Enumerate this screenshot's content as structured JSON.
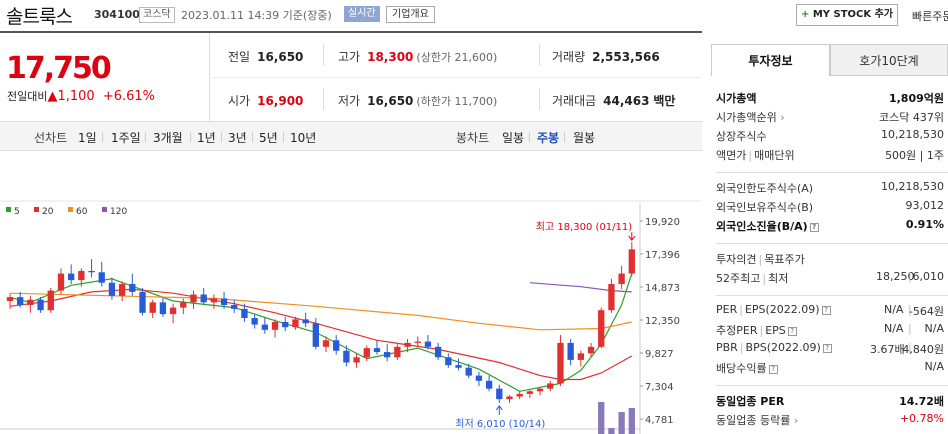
{
  "header": {
    "stock_name": "솔트룩스",
    "stock_code": "304100",
    "market": "코스닥",
    "timestamp": "2023.01.11 14:39 기준(장중)",
    "live": "실시간",
    "company_overview": "기업개요",
    "mystock_label": "MY STOCK 추가",
    "quick_order": "빠른주문"
  },
  "price": {
    "current": "17,750",
    "change_label": "전일대비",
    "change": "1,100",
    "change_pct": "+6.61%"
  },
  "quote": {
    "prev_close_label": "전일",
    "prev_close": "16,650",
    "high_label": "고가",
    "high": "18,300",
    "upper_limit": "(상한가 21,600)",
    "volume_label": "거래량",
    "volume": "2,553,566",
    "open_label": "시가",
    "open": "16,900",
    "low_label": "저가",
    "low": "16,650",
    "lower_limit": "(하한가 11,700)",
    "amount_label": "거래대금",
    "amount": "44,463",
    "amount_unit": "백만"
  },
  "periods": {
    "line_label": "선차트",
    "items": [
      "1일",
      "1주일",
      "3개월",
      "1년",
      "3년",
      "5년",
      "10년"
    ],
    "candle_label": "봉차트",
    "candles": [
      "일봉",
      "주봉",
      "월봉"
    ],
    "active_candle": "주봉"
  },
  "legend": {
    "ma": [
      {
        "name": "5",
        "color": "#2ca02c"
      },
      {
        "name": "20",
        "color": "#e03030"
      },
      {
        "name": "60",
        "color": "#f0901e"
      },
      {
        "name": "120",
        "color": "#8855bb"
      }
    ]
  },
  "chart_data": {
    "type": "candlestick",
    "y_ticks": [
      "19,920",
      "17,396",
      "14,873",
      "12,350",
      "9,827",
      "7,304",
      "4,781"
    ],
    "ylim": [
      4781,
      19920
    ],
    "max_note": "최고 18,300 (01/11)",
    "min_note": "최저 6,010 (10/14)",
    "volume_label": "거래량",
    "colors": {
      "up": "#e03030",
      "down": "#2a5bd7"
    },
    "candles": [
      [
        13800,
        14400,
        13200,
        14100
      ],
      [
        14100,
        14500,
        13300,
        13500
      ],
      [
        13500,
        14200,
        12900,
        13900
      ],
      [
        13900,
        14100,
        12900,
        13100
      ],
      [
        13100,
        14800,
        12900,
        14600
      ],
      [
        14600,
        16300,
        14300,
        15900
      ],
      [
        15900,
        16600,
        15100,
        15400
      ],
      [
        15400,
        16300,
        14900,
        16100
      ],
      [
        16100,
        17000,
        15600,
        16000
      ],
      [
        16000,
        16800,
        14900,
        15200
      ],
      [
        15200,
        15600,
        13900,
        14200
      ],
      [
        14200,
        15300,
        13800,
        15100
      ],
      [
        15100,
        15900,
        14200,
        14500
      ],
      [
        14500,
        14800,
        12700,
        12900
      ],
      [
        12900,
        13900,
        12500,
        13700
      ],
      [
        13700,
        14100,
        12600,
        12800
      ],
      [
        12800,
        13600,
        12100,
        13300
      ],
      [
        13300,
        14000,
        12800,
        13700
      ],
      [
        13700,
        14600,
        13200,
        14300
      ],
      [
        14300,
        14800,
        13500,
        13700
      ],
      [
        13700,
        14300,
        13200,
        14000
      ],
      [
        14000,
        14500,
        13200,
        13500
      ],
      [
        13500,
        13900,
        12900,
        13200
      ],
      [
        13200,
        13600,
        12200,
        12500
      ],
      [
        12500,
        12800,
        11700,
        12000
      ],
      [
        12000,
        12500,
        11300,
        11600
      ],
      [
        11600,
        12400,
        11000,
        12200
      ],
      [
        12200,
        12600,
        11500,
        11800
      ],
      [
        11800,
        12600,
        11600,
        12400
      ],
      [
        12400,
        12900,
        11800,
        12100
      ],
      [
        12100,
        12500,
        10100,
        10300
      ],
      [
        10300,
        11100,
        9900,
        10800
      ],
      [
        10800,
        11200,
        9700,
        10000
      ],
      [
        10000,
        10400,
        8800,
        9100
      ],
      [
        9100,
        9800,
        8700,
        9500
      ],
      [
        9500,
        10400,
        9200,
        10200
      ],
      [
        10200,
        10800,
        9700,
        9900
      ],
      [
        9900,
        10500,
        9200,
        9500
      ],
      [
        9500,
        10500,
        9300,
        10300
      ],
      [
        10300,
        10900,
        9900,
        10600
      ],
      [
        10600,
        11100,
        10300,
        10700
      ],
      [
        10700,
        11200,
        10100,
        10300
      ],
      [
        10300,
        10600,
        9300,
        9500
      ],
      [
        9500,
        9800,
        8700,
        8900
      ],
      [
        8900,
        9400,
        8500,
        8700
      ],
      [
        8700,
        9000,
        7900,
        8100
      ],
      [
        8100,
        8400,
        7300,
        7700
      ],
      [
        7700,
        8100,
        6900,
        7100
      ],
      [
        7100,
        7400,
        6010,
        6300
      ],
      [
        6300,
        6600,
        6010,
        6500
      ],
      [
        6500,
        6900,
        6300,
        6700
      ],
      [
        6700,
        7000,
        6400,
        6900
      ],
      [
        6900,
        7200,
        6600,
        7100
      ],
      [
        7100,
        7700,
        6900,
        7500
      ],
      [
        7500,
        11200,
        7300,
        10600
      ],
      [
        10600,
        10900,
        8900,
        9300
      ],
      [
        9300,
        10000,
        8800,
        9800
      ],
      [
        9800,
        10600,
        9500,
        10300
      ],
      [
        10300,
        13300,
        10200,
        13100
      ],
      [
        13100,
        15500,
        12900,
        15100
      ],
      [
        15100,
        16500,
        14700,
        15900
      ],
      [
        15900,
        18300,
        15700,
        17750
      ]
    ],
    "ma": {
      "5": [
        [
          0,
          14073
        ],
        [
          2,
          13700
        ],
        [
          6,
          15000
        ],
        [
          10,
          15500
        ],
        [
          16,
          13800
        ],
        [
          22,
          13300
        ],
        [
          26,
          12300
        ],
        [
          30,
          11400
        ],
        [
          35,
          9400
        ],
        [
          40,
          10200
        ],
        [
          46,
          8600
        ],
        [
          50,
          6900
        ],
        [
          54,
          7500
        ],
        [
          56,
          8500
        ],
        [
          58,
          10500
        ],
        [
          60,
          13500
        ],
        [
          61,
          15900
        ]
      ],
      "20": [
        [
          0,
          13400
        ],
        [
          4,
          13800
        ],
        [
          8,
          14500
        ],
        [
          12,
          14700
        ],
        [
          16,
          14400
        ],
        [
          22,
          13600
        ],
        [
          26,
          12900
        ],
        [
          30,
          12100
        ],
        [
          36,
          10800
        ],
        [
          42,
          10100
        ],
        [
          48,
          9100
        ],
        [
          52,
          8100
        ],
        [
          54,
          7800
        ],
        [
          56,
          7800
        ],
        [
          58,
          8300
        ],
        [
          61,
          9600
        ]
      ],
      "60": [
        [
          0,
          14400
        ],
        [
          10,
          14200
        ],
        [
          20,
          14000
        ],
        [
          30,
          13400
        ],
        [
          40,
          12700
        ],
        [
          46,
          12100
        ],
        [
          52,
          11600
        ],
        [
          58,
          11700
        ],
        [
          61,
          12200
        ]
      ],
      "120": [
        [
          51,
          15200
        ],
        [
          56,
          14900
        ],
        [
          59,
          14600
        ],
        [
          61,
          14500
        ]
      ]
    },
    "volume": [
      0,
      0,
      0,
      0,
      0,
      0,
      0,
      0,
      0,
      0,
      0,
      0,
      0,
      0,
      0,
      0,
      0,
      0,
      0,
      0,
      0,
      0,
      0,
      0,
      0,
      0,
      0,
      0,
      0,
      0,
      0,
      0,
      0,
      0,
      0,
      0,
      0,
      0,
      0,
      0,
      0,
      0,
      0,
      0,
      0,
      0,
      0,
      0,
      0,
      0,
      0,
      0,
      0,
      0,
      0,
      0,
      0,
      0,
      34,
      8,
      24,
      28
    ]
  },
  "invest": {
    "tab_active": "투자정보",
    "tab_other": "호가10단계",
    "market_cap_label": "시가총액",
    "market_cap": "1,809억원",
    "market_cap_rank_label": "시가총액순위",
    "market_cap_rank": "코스닥 437위",
    "shares_label": "상장주식수",
    "shares": "10,218,530",
    "par_label": "액면가",
    "unit_label": "매매단위",
    "par_unit": "500원 | 1주",
    "foreign_limit_label": "외국인한도주식수(A)",
    "foreign_limit": "10,218,530",
    "foreign_hold_label": "외국인보유주식수(B)",
    "foreign_hold": "93,012",
    "foreign_ratio_label": "외국인소진율(B/A)",
    "foreign_ratio": "0.91%",
    "opinion_label": "투자의견",
    "target_label": "목표주가",
    "w52_label": "52주최고",
    "w52_low_label": "최저",
    "w52_high": "18,250",
    "w52_low": "6,010",
    "per_label": "PER",
    "eps_label": "EPS(2022.09)",
    "per": "N/A",
    "eps": "-564원",
    "est_per_label": "추정PER",
    "est_eps_label": "EPS",
    "est_per": "N/A",
    "est_eps": "N/A",
    "pbr_label": "PBR",
    "bps_label": "BPS(2022.09)",
    "pbr": "3.67배",
    "bps": "4,840원",
    "div_label": "배당수익률",
    "div": "N/A",
    "sector_per_label": "동일업종 PER",
    "sector_per": "14.72배",
    "sector_change_label": "동일업종 등락률",
    "sector_change": "+0.78%"
  }
}
